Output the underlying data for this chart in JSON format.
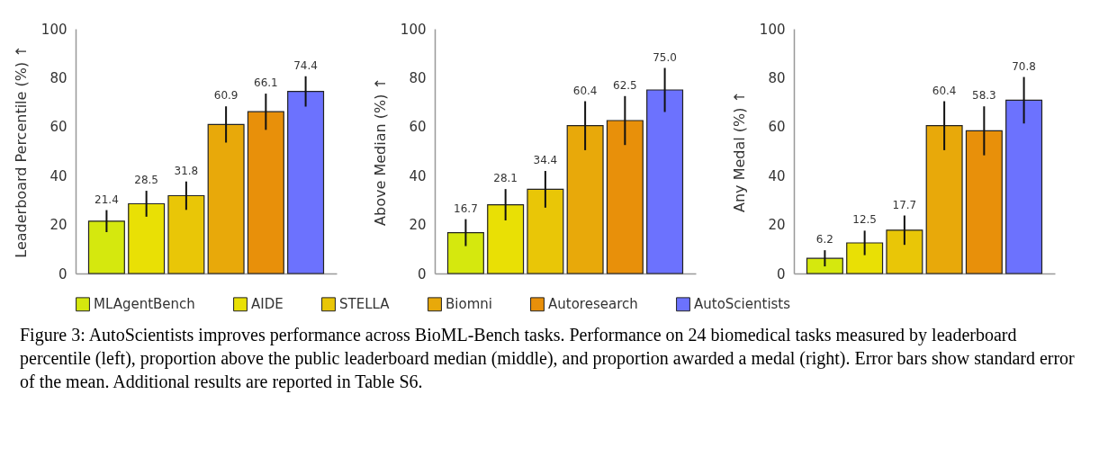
{
  "chart_data": [
    {
      "type": "bar",
      "ylabel": "Leaderboard Percentile (%)  ↑",
      "categories": [
        null
      ],
      "ylim": [
        0,
        100
      ],
      "yticks": [
        0,
        20,
        40,
        60,
        80,
        100
      ],
      "data_labels": true,
      "legend": "bottom",
      "grid": false,
      "series": [
        {
          "name": "MLAgentBench",
          "color": "#d5e80e",
          "values": [
            21.4
          ],
          "errors": [
            4.5
          ]
        },
        {
          "name": "AIDE",
          "color": "#e9e005",
          "values": [
            28.5
          ],
          "errors": [
            5.3
          ]
        },
        {
          "name": "STELLA",
          "color": "#e9c607",
          "values": [
            31.8
          ],
          "errors": [
            5.8
          ]
        },
        {
          "name": "Biomni",
          "color": "#e8a90a",
          "values": [
            60.9
          ],
          "errors": [
            7.4
          ]
        },
        {
          "name": "Autoresearch",
          "color": "#e8900a",
          "values": [
            66.1
          ],
          "errors": [
            7.4
          ]
        },
        {
          "name": "AutoScientists",
          "color": "#6c72fe",
          "values": [
            74.4
          ],
          "errors": [
            6.2
          ]
        }
      ]
    },
    {
      "type": "bar",
      "ylabel": "Above Median (%)  ↑",
      "categories": [
        null
      ],
      "ylim": [
        0,
        100
      ],
      "yticks": [
        0,
        20,
        40,
        60,
        80,
        100
      ],
      "data_labels": true,
      "legend": "bottom",
      "grid": false,
      "series": [
        {
          "name": "MLAgentBench",
          "color": "#d5e80e",
          "values": [
            16.7
          ],
          "errors": [
            5.5
          ]
        },
        {
          "name": "AIDE",
          "color": "#e9e005",
          "values": [
            28.1
          ],
          "errors": [
            6.4
          ]
        },
        {
          "name": "STELLA",
          "color": "#e9c607",
          "values": [
            34.4
          ],
          "errors": [
            7.5
          ]
        },
        {
          "name": "Biomni",
          "color": "#e8a90a",
          "values": [
            60.4
          ],
          "errors": [
            10
          ]
        },
        {
          "name": "Autoresearch",
          "color": "#e8900a",
          "values": [
            62.5
          ],
          "errors": [
            10
          ]
        },
        {
          "name": "AutoScientists",
          "color": "#6c72fe",
          "values": [
            75.0
          ],
          "value_labels": [
            "75.0"
          ],
          "errors": [
            9
          ]
        }
      ]
    },
    {
      "type": "bar",
      "ylabel": "Any Medal (%)  ↑",
      "categories": [
        null
      ],
      "ylim": [
        0,
        100
      ],
      "yticks": [
        0,
        20,
        40,
        60,
        80,
        100
      ],
      "data_labels": true,
      "legend": "bottom",
      "grid": false,
      "annotations": [
        "Figure 3: AutoScientists improves performance across BioML-Bench tasks. Performance on 24 biomedical tasks measured by leaderboard percentile (left), proportion above the public leaderboard median (middle), and proportion awarded a medal (right). Error bars show standard error of the mean. Additional results are reported in Table S6."
      ],
      "series": [
        {
          "name": "MLAgentBench",
          "color": "#d5e80e",
          "values": [
            6.2
          ],
          "errors": [
            3.3
          ]
        },
        {
          "name": "AIDE",
          "color": "#e9e005",
          "values": [
            12.5
          ],
          "errors": [
            5
          ]
        },
        {
          "name": "STELLA",
          "color": "#e9c607",
          "values": [
            17.7
          ],
          "errors": [
            6
          ]
        },
        {
          "name": "Biomni",
          "color": "#e8a90a",
          "values": [
            60.4
          ],
          "errors": [
            10
          ]
        },
        {
          "name": "Autoresearch",
          "color": "#e8900a",
          "values": [
            58.3
          ],
          "errors": [
            10
          ]
        },
        {
          "name": "AutoScientists",
          "color": "#6c72fe",
          "values": [
            70.8
          ],
          "errors": [
            9.5
          ]
        }
      ]
    }
  ]
}
